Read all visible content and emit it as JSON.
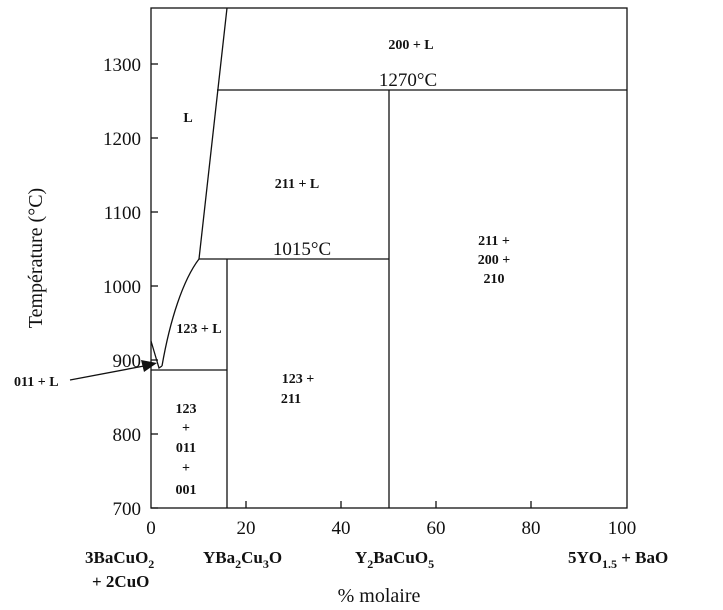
{
  "y_axis": {
    "label": "Température (°C)",
    "ticks": [
      "700",
      "800",
      "900",
      "1000",
      "1100",
      "1200",
      "1300"
    ]
  },
  "x_axis": {
    "label": "% molaire",
    "ticks": [
      "0",
      "20",
      "40",
      "60",
      "80",
      "100"
    ]
  },
  "regions": {
    "top_right": "200 + L",
    "liquid": "L",
    "mid_211_l": "211 + L",
    "right_line1": "211 +",
    "right_line2": "200 +",
    "right_line3": "210",
    "mid_123_l": "123 + L",
    "mid_123_211_line1": "123 +",
    "mid_123_211_line2": "211",
    "left_line1": "123",
    "left_line2": "+",
    "left_line3": "011",
    "left_line4": "+",
    "left_line5": "001",
    "arrow_label": "011 + L"
  },
  "temperatures": {
    "upper": "1270°C",
    "lower": "1015°C"
  },
  "compositions": {
    "c0_line1_a": "3BaCuO",
    "c0_line1_sub": "2",
    "c0_line2": "+ 2CuO",
    "c1_a": "YBa",
    "c1_sub1": "2",
    "c1_b": "Cu",
    "c1_sub2": "3",
    "c1_c": "O",
    "c2_a": "Y",
    "c2_sub1": "2",
    "c2_b": "BaCuO",
    "c2_sub2": "5",
    "c3_a": "5YO",
    "c3_sub": "1.5",
    "c3_b": " + BaO"
  }
}
